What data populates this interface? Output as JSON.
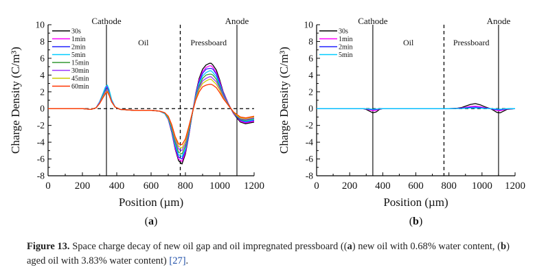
{
  "chart_data": [
    {
      "type": "line",
      "panel_label": "a",
      "xlabel": "Position (µm)",
      "ylabel": "Charge Density (C/m³)",
      "xlim": [
        0,
        1200
      ],
      "ylim": [
        -8,
        10
      ],
      "xticks": [
        0,
        200,
        400,
        600,
        800,
        1000,
        1200
      ],
      "yticks": [
        -8,
        -6,
        -4,
        -2,
        0,
        2,
        4,
        6,
        8,
        10
      ],
      "grid": false,
      "legend_position": "top-left",
      "region_labels": {
        "cathode": "Cathode",
        "oil": "Oil",
        "pressboard": "Pressboard",
        "anode": "Anode"
      },
      "electrode_lines_x": [
        340,
        1100
      ],
      "interface_line_x": 770,
      "zero_line": true,
      "x": [
        0,
        100,
        200,
        250,
        280,
        300,
        320,
        335,
        345,
        355,
        370,
        390,
        420,
        500,
        600,
        650,
        680,
        700,
        720,
        740,
        760,
        780,
        800,
        820,
        840,
        860,
        880,
        900,
        920,
        940,
        950,
        960,
        980,
        1000,
        1020,
        1050,
        1080,
        1100,
        1120,
        1150,
        1200
      ],
      "series": [
        {
          "name": "30s",
          "color": "#000000",
          "values": [
            0,
            0,
            0,
            -0.1,
            0.1,
            0.8,
            1.8,
            2.6,
            2.7,
            2.2,
            1.0,
            0.2,
            -0.1,
            -0.2,
            -0.2,
            -0.3,
            -0.6,
            -1.3,
            -2.8,
            -4.8,
            -6.2,
            -6.6,
            -5.4,
            -3.2,
            -0.6,
            1.8,
            3.6,
            4.7,
            5.2,
            5.4,
            5.4,
            5.2,
            4.6,
            3.4,
            2.0,
            0.6,
            -0.6,
            -1.1,
            -1.6,
            -1.8,
            -1.6
          ]
        },
        {
          "name": "1min",
          "color": "#ff00ff",
          "values": [
            0,
            0,
            0,
            -0.1,
            0.1,
            0.8,
            1.8,
            2.5,
            2.6,
            2.1,
            1.0,
            0.2,
            -0.1,
            -0.2,
            -0.2,
            -0.3,
            -0.6,
            -1.3,
            -2.7,
            -4.7,
            -6.0,
            -6.3,
            -5.2,
            -3.1,
            -0.6,
            1.7,
            3.4,
            4.4,
            4.9,
            5.1,
            5.1,
            4.9,
            4.3,
            3.2,
            1.9,
            0.6,
            -0.6,
            -1.0,
            -1.5,
            -1.7,
            -1.5
          ]
        },
        {
          "name": "2min",
          "color": "#2222ff",
          "values": [
            0,
            0,
            0,
            -0.1,
            0.1,
            0.8,
            1.7,
            2.4,
            2.5,
            2.0,
            1.0,
            0.2,
            -0.1,
            -0.2,
            -0.2,
            -0.3,
            -0.6,
            -1.2,
            -2.6,
            -4.5,
            -5.8,
            -6.0,
            -5.0,
            -3.0,
            -0.6,
            1.6,
            3.2,
            4.2,
            4.7,
            4.8,
            4.8,
            4.7,
            4.1,
            3.0,
            1.8,
            0.5,
            -0.5,
            -1.0,
            -1.4,
            -1.6,
            -1.4
          ]
        },
        {
          "name": "5min",
          "color": "#00ccff",
          "values": [
            0,
            0,
            0,
            -0.1,
            0.1,
            0.8,
            1.8,
            2.6,
            2.8,
            2.3,
            1.1,
            0.2,
            -0.1,
            -0.2,
            -0.2,
            -0.3,
            -0.6,
            -1.2,
            -2.5,
            -4.3,
            -5.5,
            -5.7,
            -4.8,
            -2.8,
            -0.6,
            1.5,
            3.0,
            3.9,
            4.3,
            4.5,
            4.5,
            4.3,
            3.8,
            2.8,
            1.7,
            0.5,
            -0.5,
            -0.9,
            -1.3,
            -1.5,
            -1.3
          ]
        },
        {
          "name": "15min",
          "color": "#339933",
          "values": [
            0,
            0,
            0,
            -0.1,
            0.1,
            0.7,
            1.6,
            2.2,
            2.4,
            1.9,
            0.9,
            0.2,
            -0.1,
            -0.2,
            -0.2,
            -0.3,
            -0.5,
            -1.1,
            -2.3,
            -4.0,
            -5.2,
            -5.4,
            -4.5,
            -2.6,
            -0.6,
            1.3,
            2.7,
            3.6,
            4.0,
            4.1,
            4.1,
            4.0,
            3.5,
            2.6,
            1.6,
            0.5,
            -0.5,
            -0.9,
            -1.3,
            -1.4,
            -1.2
          ]
        },
        {
          "name": "30min",
          "color": "#9933ff",
          "values": [
            0,
            0,
            0,
            -0.1,
            0.1,
            0.7,
            1.5,
            2.1,
            2.3,
            1.8,
            0.9,
            0.2,
            -0.1,
            -0.2,
            -0.2,
            -0.3,
            -0.5,
            -1.0,
            -2.1,
            -3.7,
            -4.8,
            -5.0,
            -4.2,
            -2.4,
            -0.5,
            1.2,
            2.5,
            3.3,
            3.6,
            3.8,
            3.8,
            3.6,
            3.2,
            2.4,
            1.5,
            0.4,
            -0.4,
            -0.8,
            -1.2,
            -1.3,
            -1.1
          ]
        },
        {
          "name": "45min",
          "color": "#cccc00",
          "values": [
            0,
            0,
            0,
            -0.1,
            0.1,
            0.6,
            1.4,
            1.9,
            2.1,
            1.7,
            0.8,
            0.2,
            -0.1,
            -0.2,
            -0.2,
            -0.3,
            -0.5,
            -1.0,
            -2.0,
            -3.5,
            -4.5,
            -4.7,
            -3.9,
            -2.3,
            -0.5,
            1.1,
            2.3,
            3.0,
            3.3,
            3.5,
            3.5,
            3.3,
            2.9,
            2.2,
            1.3,
            0.4,
            -0.4,
            -0.8,
            -1.1,
            -1.2,
            -1.0
          ]
        },
        {
          "name": "60min",
          "color": "#ff3300",
          "values": [
            0,
            0,
            0,
            -0.1,
            0.1,
            0.6,
            1.3,
            1.8,
            2.0,
            1.6,
            0.8,
            0.2,
            -0.1,
            -0.2,
            -0.2,
            -0.3,
            -0.5,
            -0.9,
            -1.9,
            -3.3,
            -4.2,
            -4.3,
            -3.6,
            -2.1,
            -0.5,
            1.0,
            2.0,
            2.6,
            2.8,
            2.9,
            2.9,
            2.8,
            2.5,
            1.9,
            1.2,
            0.4,
            -0.4,
            -0.7,
            -1.0,
            -1.1,
            -0.9
          ]
        }
      ]
    },
    {
      "type": "line",
      "panel_label": "b",
      "xlabel": "Position (µm)",
      "ylabel": "Charge Density (C/m³)",
      "xlim": [
        0,
        1200
      ],
      "ylim": [
        -8,
        10
      ],
      "xticks": [
        0,
        200,
        400,
        600,
        800,
        1000,
        1200
      ],
      "yticks": [
        -8,
        -6,
        -4,
        -2,
        0,
        2,
        4,
        6,
        8,
        10
      ],
      "grid": false,
      "legend_position": "top-left",
      "region_labels": {
        "cathode": "Cathode",
        "oil": "Oil",
        "pressboard": "Pressboard",
        "anode": "Anode"
      },
      "electrode_lines_x": [
        340,
        1100
      ],
      "interface_line_x": 770,
      "zero_line": true,
      "x": [
        0,
        100,
        200,
        280,
        300,
        320,
        340,
        360,
        380,
        400,
        500,
        600,
        700,
        800,
        850,
        880,
        900,
        930,
        960,
        990,
        1020,
        1050,
        1070,
        1090,
        1110,
        1130,
        1150,
        1200
      ],
      "series": [
        {
          "name": "30s",
          "color": "#000000",
          "values": [
            0,
            0,
            0,
            0,
            -0.1,
            -0.3,
            -0.5,
            -0.4,
            -0.1,
            0,
            0,
            0,
            0,
            0,
            0.05,
            0.15,
            0.3,
            0.5,
            0.6,
            0.45,
            0.2,
            0,
            -0.2,
            -0.45,
            -0.5,
            -0.3,
            -0.1,
            0
          ]
        },
        {
          "name": "1min",
          "color": "#ff00ff",
          "values": [
            0,
            0,
            0,
            0,
            -0.05,
            -0.15,
            -0.25,
            -0.2,
            -0.05,
            0,
            0,
            0,
            0,
            0,
            0.03,
            0.08,
            0.15,
            0.25,
            0.3,
            0.22,
            0.1,
            0,
            -0.1,
            -0.2,
            -0.25,
            -0.15,
            -0.05,
            0
          ]
        },
        {
          "name": "2min",
          "color": "#2222ff",
          "values": [
            0,
            0,
            0,
            0,
            -0.03,
            -0.08,
            -0.12,
            -0.1,
            -0.03,
            0,
            0,
            0,
            0,
            0,
            0.02,
            0.05,
            0.1,
            0.15,
            0.18,
            0.13,
            0.06,
            0,
            -0.06,
            -0.12,
            -0.14,
            -0.08,
            -0.03,
            0
          ]
        },
        {
          "name": "5min",
          "color": "#00ccff",
          "values": [
            0,
            0,
            0,
            0,
            -0.02,
            -0.04,
            -0.06,
            -0.05,
            -0.02,
            0,
            0,
            0,
            0,
            0,
            0.01,
            0.02,
            0.04,
            0.06,
            0.07,
            0.05,
            0.02,
            0,
            -0.02,
            -0.05,
            -0.06,
            -0.04,
            -0.01,
            0
          ]
        }
      ]
    }
  ],
  "caption": {
    "label": "Figure 13.",
    "part1": " Space charge decay of new oil gap and oil impregnated pressboard ((",
    "a": "a",
    "part2": ") new oil with 0.68% water content, (",
    "b": "b",
    "part3": ") aged oil with 3.83% water content) ",
    "ref": "[27]",
    "part4": "."
  }
}
